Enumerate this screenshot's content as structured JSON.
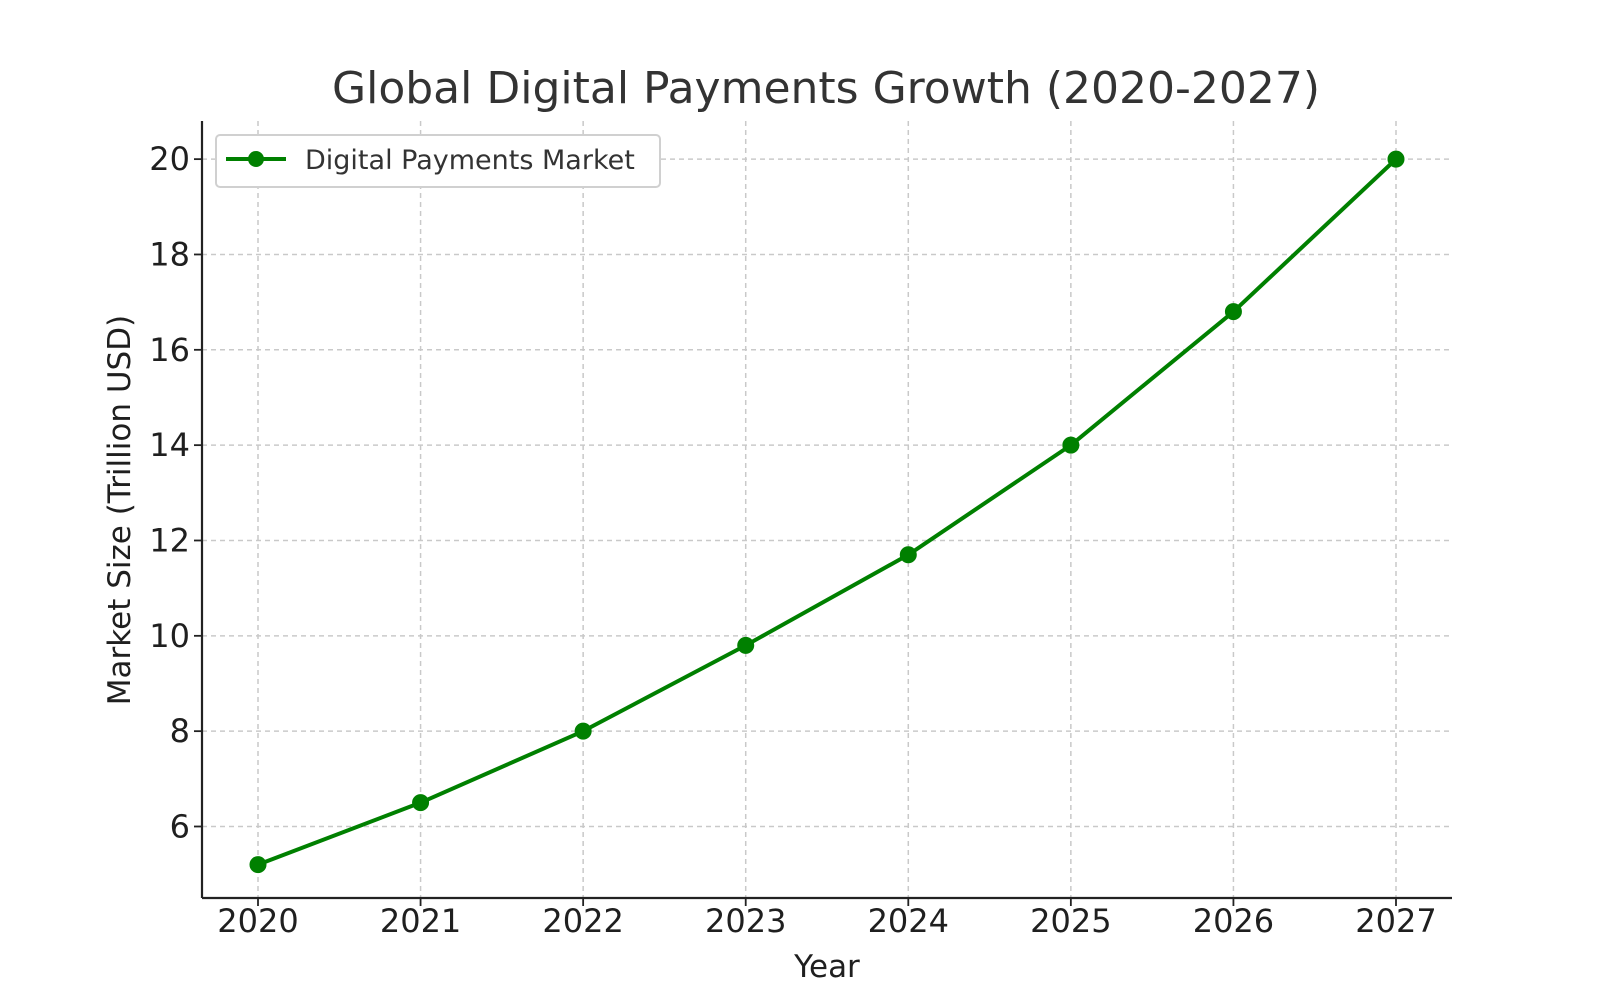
{
  "chart_data": {
    "type": "line",
    "title": "Global Digital Payments Growth (2020-2027)",
    "xlabel": "Year",
    "ylabel": "Market Size (Trillion USD)",
    "categories": [
      "2020",
      "2021",
      "2022",
      "2023",
      "2024",
      "2025",
      "2026",
      "2027"
    ],
    "y_ticks": [
      "6",
      "8",
      "10",
      "12",
      "14",
      "16",
      "18",
      "20"
    ],
    "ylim": [
      4.5,
      20.8
    ],
    "grid": true,
    "legend_position": "top-left",
    "series": [
      {
        "name": "Digital Payments Market",
        "values": [
          5.2,
          6.5,
          8.0,
          9.8,
          11.7,
          14.0,
          16.8,
          20.0
        ],
        "color": "#008000",
        "marker": "circle"
      }
    ]
  }
}
